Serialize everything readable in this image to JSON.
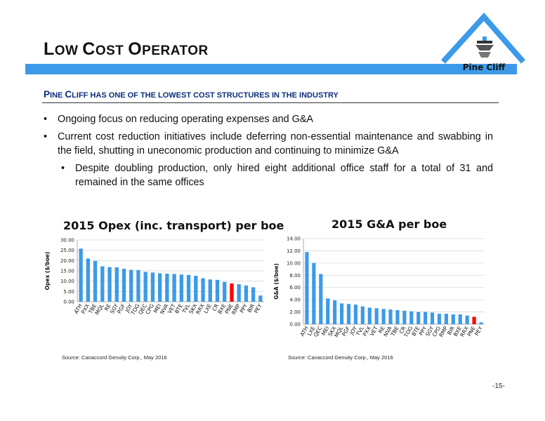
{
  "header": {
    "title_parts": [
      {
        "text": "L",
        "size": "big"
      },
      {
        "text": "OW ",
        "size": "sm"
      },
      {
        "text": "C",
        "size": "big"
      },
      {
        "text": "OST ",
        "size": "sm"
      },
      {
        "text": "O",
        "size": "big"
      },
      {
        "text": "PERATOR",
        "size": "sm"
      }
    ],
    "logo_text": "Pine Cliff",
    "brand_color": "#3c9ae8"
  },
  "subtitle_parts": [
    {
      "text": "P",
      "size": "big"
    },
    {
      "text": "INE ",
      "size": "sm"
    },
    {
      "text": "C",
      "size": "big"
    },
    {
      "text": "LIFF HAS ONE OF THE LOWEST COST STRUCTURES IN THE INDUSTRY",
      "size": "sm"
    }
  ],
  "bullets": [
    {
      "text": "Ongoing focus on reducing operating expenses and G&A",
      "level": 1
    },
    {
      "text": "Current cost reduction initiatives include deferring non-essential maintenance and swabbing in the field, shutting in uneconomic production and continuing to minimize G&A",
      "level": 1
    },
    {
      "text": "Despite doubling production, only hired eight additional office staff for a total of 31 and remained in the same offices",
      "level": 2
    }
  ],
  "bullet_char": "•",
  "chart_data": [
    {
      "type": "bar",
      "title": "2015 Opex (inc. transport) per boe",
      "ylabel": "Opex ($/boe)",
      "xlabel": "",
      "ylim": [
        0,
        30
      ],
      "yticks": [
        "0.00",
        "5.00",
        "10.00",
        "15.00",
        "20.00",
        "25.00",
        "30.00"
      ],
      "ytick_values": [
        0,
        5,
        10,
        15,
        20,
        25,
        30
      ],
      "grid": true,
      "bar_color": "#3c9ae8",
      "highlight_color": "#ff0000",
      "highlight_category": "PNE",
      "categories": [
        "ATH",
        "PXX",
        "TBE",
        "MQL",
        "RE",
        "SGY",
        "PGF",
        "JOY",
        "TOG",
        "QEC",
        "CPG",
        "MEI",
        "NVA",
        "VET",
        "BTE",
        "TVL",
        "SKX",
        "RRX",
        "LXE",
        "CR",
        "BXE",
        "PNE",
        "RMP",
        "PPY",
        "BIR",
        "PEY"
      ],
      "values": [
        25.8,
        21.0,
        19.8,
        17.2,
        16.8,
        16.7,
        16.0,
        15.5,
        15.4,
        14.5,
        14.2,
        13.8,
        13.6,
        13.5,
        13.2,
        13.0,
        12.6,
        11.4,
        10.8,
        10.6,
        9.6,
        8.9,
        8.5,
        7.9,
        7.0,
        3.0
      ],
      "source": "Source: Canaccord Genuity Corp., May 2016"
    },
    {
      "type": "bar",
      "title": "2015 G&A per boe",
      "ylabel": "G&A ($/boe)",
      "xlabel": "",
      "ylim": [
        0,
        14
      ],
      "yticks": [
        "0.00",
        "2.00",
        "4.00",
        "6.00",
        "8.00",
        "10.00",
        "12.00",
        "14.00"
      ],
      "ytick_values": [
        0,
        2,
        4,
        6,
        8,
        10,
        12,
        14
      ],
      "grid": true,
      "bar_color": "#3c9ae8",
      "highlight_color": "#ff0000",
      "highlight_category": "PNE",
      "categories": [
        "ATH",
        "LXE",
        "QEC",
        "MEI",
        "SKX",
        "MQL",
        "PGF",
        "JOY",
        "TVL",
        "PXX",
        "VET",
        "RE",
        "NVA",
        "TBE",
        "CR",
        "TOG",
        "BTE",
        "PPY",
        "SGY",
        "CPG",
        "RMP",
        "BIR",
        "BXE",
        "RRX",
        "PNE",
        "PEY"
      ],
      "values": [
        11.8,
        10.0,
        8.2,
        4.2,
        3.9,
        3.4,
        3.3,
        3.2,
        2.9,
        2.7,
        2.6,
        2.5,
        2.4,
        2.3,
        2.2,
        2.1,
        2.0,
        2.0,
        1.9,
        1.7,
        1.7,
        1.6,
        1.6,
        1.4,
        1.2,
        0.3
      ],
      "source": "Source: Canaccord Genuity Corp., May 2016"
    }
  ],
  "page_number": "-15-"
}
